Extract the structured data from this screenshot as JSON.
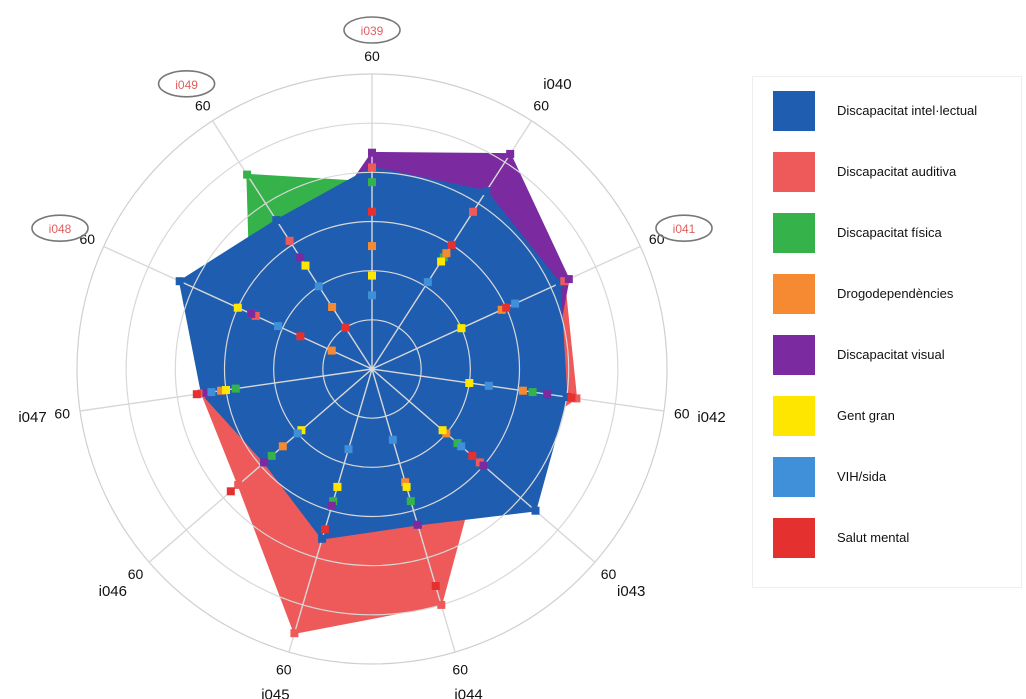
{
  "chart_data": {
    "type": "radar",
    "title": "",
    "axes": [
      {
        "id": "i039",
        "max_label": "60",
        "highlighted": true
      },
      {
        "id": "i040",
        "max_label": "60",
        "highlighted": false
      },
      {
        "id": "i041",
        "max_label": "60",
        "highlighted": true
      },
      {
        "id": "i042",
        "max_label": "60",
        "highlighted": false
      },
      {
        "id": "i043",
        "max_label": "60",
        "highlighted": false
      },
      {
        "id": "i044",
        "max_label": "60",
        "highlighted": false
      },
      {
        "id": "i045",
        "max_label": "60",
        "highlighted": false
      },
      {
        "id": "i046",
        "max_label": "60",
        "highlighted": false
      },
      {
        "id": "i047",
        "max_label": "60",
        "highlighted": false
      },
      {
        "id": "i048",
        "max_label": "60",
        "highlighted": true
      },
      {
        "id": "i049",
        "max_label": "60",
        "highlighted": true
      }
    ],
    "r_max": 60,
    "ring_step": 10,
    "grid": true,
    "legend_position": "right",
    "series": [
      {
        "name": "Discapacitat intel·lectual",
        "color": "#1f5db0",
        "filled": true,
        "values": [
          41,
          43,
          42,
          40,
          44,
          33,
          36,
          29,
          35,
          43,
          36
        ]
      },
      {
        "name": "Discapacitat auditiva",
        "color": "#ee5a5a",
        "filled": true,
        "values": [
          41,
          38,
          43,
          42,
          29,
          50,
          56,
          36,
          35,
          26,
          31
        ]
      },
      {
        "name": "Discapacitat física",
        "color": "#35b24a",
        "filled": true,
        "values": [
          38,
          27,
          20,
          33,
          23,
          28,
          28,
          27,
          28,
          27,
          47
        ]
      },
      {
        "name": "Drogodependències",
        "color": "#f58a33",
        "filled": false,
        "values": [
          25,
          28,
          29,
          31,
          20,
          24,
          25,
          24,
          31,
          9,
          15
        ]
      },
      {
        "name": "Discapacitat visual",
        "color": "#7b2aa0",
        "filled": true,
        "values": [
          44,
          52,
          44,
          36,
          30,
          33,
          29,
          29,
          34,
          27,
          27
        ]
      },
      {
        "name": "Gent gran",
        "color": "#ffe600",
        "filled": false,
        "values": [
          19,
          26,
          20,
          20,
          19,
          25,
          25,
          19,
          30,
          30,
          25
        ]
      },
      {
        "name": "VIH/sida",
        "color": "#3f8fd9",
        "filled": false,
        "values": [
          15,
          21,
          32,
          24,
          24,
          15,
          17,
          20,
          33,
          21,
          20
        ]
      },
      {
        "name": "Salut mental",
        "color": "#e53030",
        "filled": false,
        "values": [
          32,
          30,
          30,
          41,
          27,
          46,
          34,
          38,
          36,
          16,
          10
        ]
      }
    ]
  },
  "legend": {
    "items": [
      {
        "label": "Discapacitat intel·lectual",
        "color": "#1f5db0"
      },
      {
        "label": "Discapacitat auditiva",
        "color": "#ee5a5a"
      },
      {
        "label": "Discapacitat física",
        "color": "#35b24a"
      },
      {
        "label": "Drogodependències",
        "color": "#f58a33"
      },
      {
        "label": "Discapacitat visual",
        "color": "#7b2aa0"
      },
      {
        "label": "Gent gran",
        "color": "#ffe600"
      },
      {
        "label": "VIH/sida",
        "color": "#3f8fd9"
      },
      {
        "label": "Salut mental",
        "color": "#e53030"
      }
    ]
  }
}
